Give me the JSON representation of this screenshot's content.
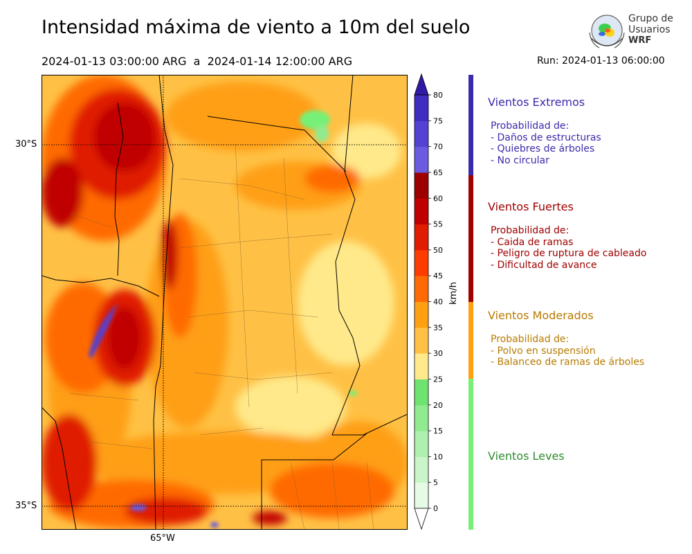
{
  "title": "Intensidad máxima de viento a 10m del suelo",
  "period": "2024-01-13 03:00:00 ARG  a  2024-01-14 12:00:00 ARG",
  "run": "Run: 2024-01-13 06:00:00",
  "logo": {
    "line1": "Grupo de",
    "line2": "Usuarios",
    "line3": "WRF"
  },
  "map": {
    "lat_labels": [
      "30°S",
      "35°S"
    ],
    "lon_label": "65°W"
  },
  "colorbar": {
    "unit": "km/h",
    "ticks": [
      "0",
      "5",
      "10",
      "15",
      "20",
      "25",
      "30",
      "35",
      "40",
      "45",
      "50",
      "55",
      "60",
      "65",
      "70",
      "75",
      "80"
    ],
    "colors": [
      "#e6fbe6",
      "#c9f5c9",
      "#aef0ae",
      "#90ea90",
      "#6fe36f",
      "#ffe98a",
      "#ffc145",
      "#ff9f12",
      "#ff6a05",
      "#ff3c00",
      "#e01d00",
      "#c00000",
      "#9c0000",
      "#6a5be0",
      "#5443d2",
      "#3f2cc0",
      "#2f1aa8"
    ]
  },
  "categories": [
    {
      "title": "Vientos Extremos",
      "color": "#3a2aac",
      "desc": [
        "Probabilidad de:",
        "- Daños de estructuras",
        "- Quiebres de árboles",
        "- No circular"
      ]
    },
    {
      "title": "Vientos Fuertes",
      "color": "#a00000",
      "desc": [
        "Probabilidad de:",
        "- Caida de ramas",
        "- Peligro de ruptura de cableado",
        "- Dificultad de avance"
      ]
    },
    {
      "title": "Vientos Moderados",
      "color": "#b87a00",
      "desc": [
        "Probabilidad de:",
        "- Polvo en suspensión",
        "- Balanceo de ramas de árboles"
      ]
    },
    {
      "title": "Vientos Leves",
      "color": "#2e8b2e",
      "desc": []
    }
  ],
  "category_bar_colors": [
    "#3a2aac",
    "#a00000",
    "#ff9f12",
    "#77f077"
  ]
}
